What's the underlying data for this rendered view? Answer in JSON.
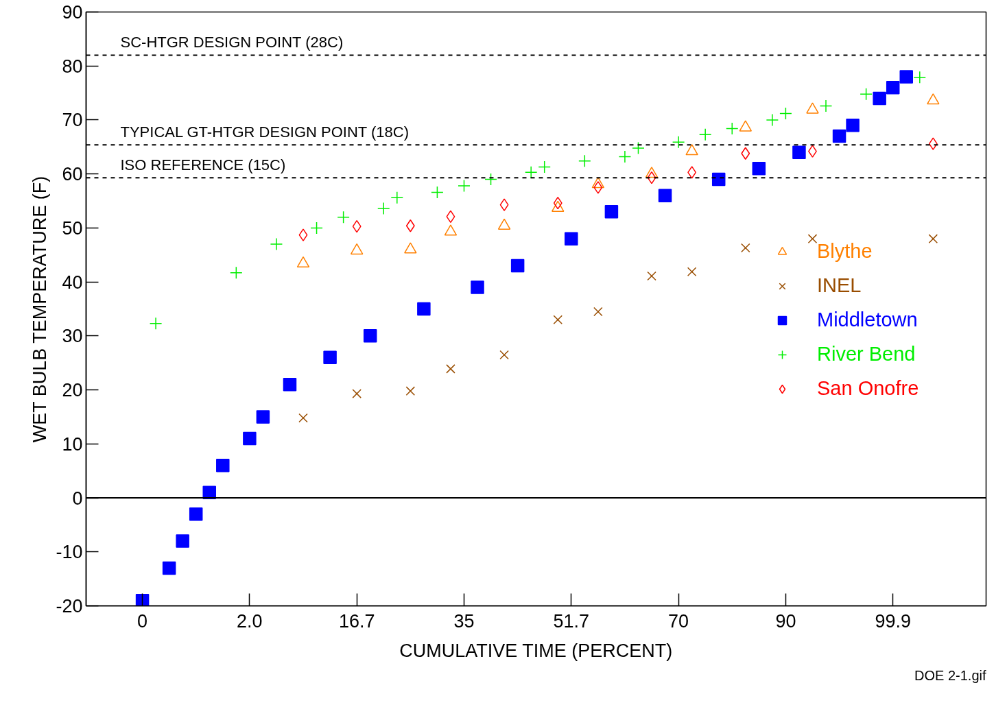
{
  "chart_data": {
    "type": "scatter",
    "xlabel": "CUMULATIVE TIME (PERCENT)",
    "ylabel": "WET BULB TEMPERATURE (F)",
    "categories": [
      "0",
      null,
      null,
      null,
      null,
      null,
      null,
      null,
      "2.0",
      null,
      null,
      null,
      null,
      null,
      null,
      null,
      "16.7",
      null,
      null,
      null,
      null,
      null,
      null,
      null,
      "35",
      null,
      null,
      null,
      null,
      null,
      null,
      null,
      "51.7",
      null,
      null,
      null,
      null,
      null,
      null,
      null,
      "70",
      null,
      null,
      null,
      null,
      null,
      null,
      null,
      "90",
      null,
      null,
      null,
      null,
      null,
      null,
      null,
      "99.9",
      null,
      null,
      null
    ],
    "ylim": [
      -20,
      90
    ],
    "yticks": [
      -20,
      -10,
      0,
      10,
      20,
      30,
      40,
      50,
      60,
      70,
      80,
      90
    ],
    "grid": false,
    "legend": "right",
    "series": [
      {
        "name": "Blythe",
        "color": "#ff8000",
        "marker": "triangle",
        "values": [
          null,
          null,
          null,
          null,
          null,
          null,
          null,
          null,
          null,
          null,
          null,
          null,
          43.4,
          null,
          null,
          null,
          45.8,
          null,
          null,
          null,
          46,
          null,
          null,
          49.3,
          null,
          null,
          null,
          50.4,
          null,
          null,
          null,
          53.7,
          null,
          null,
          58.1,
          null,
          null,
          null,
          60,
          null,
          null,
          64.2,
          null,
          null,
          null,
          68.6,
          null,
          null,
          null,
          null,
          71.9,
          null,
          null,
          null,
          null,
          null,
          null,
          null,
          null,
          73.6
        ]
      },
      {
        "name": "INEL",
        "color": "#994d00",
        "marker": "x",
        "values": [
          null,
          null,
          null,
          null,
          null,
          null,
          null,
          null,
          null,
          null,
          null,
          null,
          14.8,
          null,
          null,
          null,
          19.3,
          null,
          null,
          null,
          19.8,
          null,
          null,
          23.9,
          null,
          null,
          null,
          26.5,
          null,
          null,
          null,
          33,
          null,
          null,
          34.5,
          null,
          null,
          null,
          41.1,
          null,
          null,
          41.9,
          null,
          null,
          null,
          46.3,
          null,
          null,
          null,
          null,
          48,
          null,
          null,
          null,
          null,
          null,
          null,
          null,
          null,
          48
        ]
      },
      {
        "name": "Middletown",
        "color": "#0000ff",
        "marker": "square",
        "values": [
          -19,
          null,
          -13,
          -8,
          -3,
          1,
          6,
          null,
          11,
          15,
          null,
          21,
          null,
          null,
          26,
          null,
          null,
          30,
          null,
          null,
          null,
          35,
          null,
          null,
          null,
          39,
          null,
          null,
          43,
          null,
          null,
          null,
          48,
          null,
          null,
          53,
          null,
          null,
          null,
          56,
          null,
          null,
          null,
          59,
          null,
          null,
          61,
          null,
          null,
          64,
          null,
          null,
          67,
          69,
          null,
          74,
          76,
          78,
          null,
          null
        ]
      },
      {
        "name": "River Bend",
        "color": "#00ee00",
        "marker": "cross",
        "values": [
          null,
          32.3,
          null,
          null,
          null,
          null,
          null,
          41.7,
          null,
          null,
          47,
          null,
          null,
          50,
          null,
          52,
          null,
          null,
          53.6,
          55.6,
          null,
          null,
          56.6,
          null,
          57.8,
          null,
          59,
          null,
          null,
          60.3,
          61.3,
          null,
          null,
          62.4,
          null,
          null,
          63.2,
          64.8,
          null,
          null,
          65.9,
          null,
          67.3,
          null,
          68.4,
          null,
          null,
          70,
          71.2,
          null,
          null,
          72.6,
          null,
          null,
          74.8,
          null,
          null,
          null,
          77.9,
          null
        ]
      },
      {
        "name": "San Onofre",
        "color": "#ff0000",
        "marker": "diamond",
        "values": [
          null,
          null,
          null,
          null,
          null,
          null,
          null,
          null,
          null,
          null,
          null,
          null,
          48.7,
          null,
          null,
          null,
          50.3,
          null,
          null,
          null,
          50.4,
          null,
          null,
          52.1,
          null,
          null,
          null,
          54.3,
          null,
          null,
          null,
          54.6,
          null,
          null,
          57.5,
          null,
          null,
          null,
          59.3,
          null,
          null,
          60.3,
          null,
          null,
          null,
          63.8,
          null,
          null,
          null,
          null,
          64.2,
          null,
          null,
          null,
          null,
          null,
          null,
          null,
          null,
          65.6
        ]
      }
    ],
    "ref_lines": [
      {
        "axis": "y",
        "value": 82,
        "label": "SC-HTGR DESIGN POINT (28C)",
        "line_style": "dashed"
      },
      {
        "axis": "y",
        "value": 65.4,
        "label": "TYPICAL GT-HTGR  DESIGN POINT (18C)",
        "line_style": "dashed"
      },
      {
        "axis": "y",
        "value": 59.3,
        "label": "ISO REFERENCE (15C)",
        "line_style": "dashed"
      },
      {
        "axis": "y",
        "value": 0,
        "label": null,
        "line_style": "solid"
      }
    ],
    "annotations": [
      "DOE 2-1.gif"
    ]
  }
}
